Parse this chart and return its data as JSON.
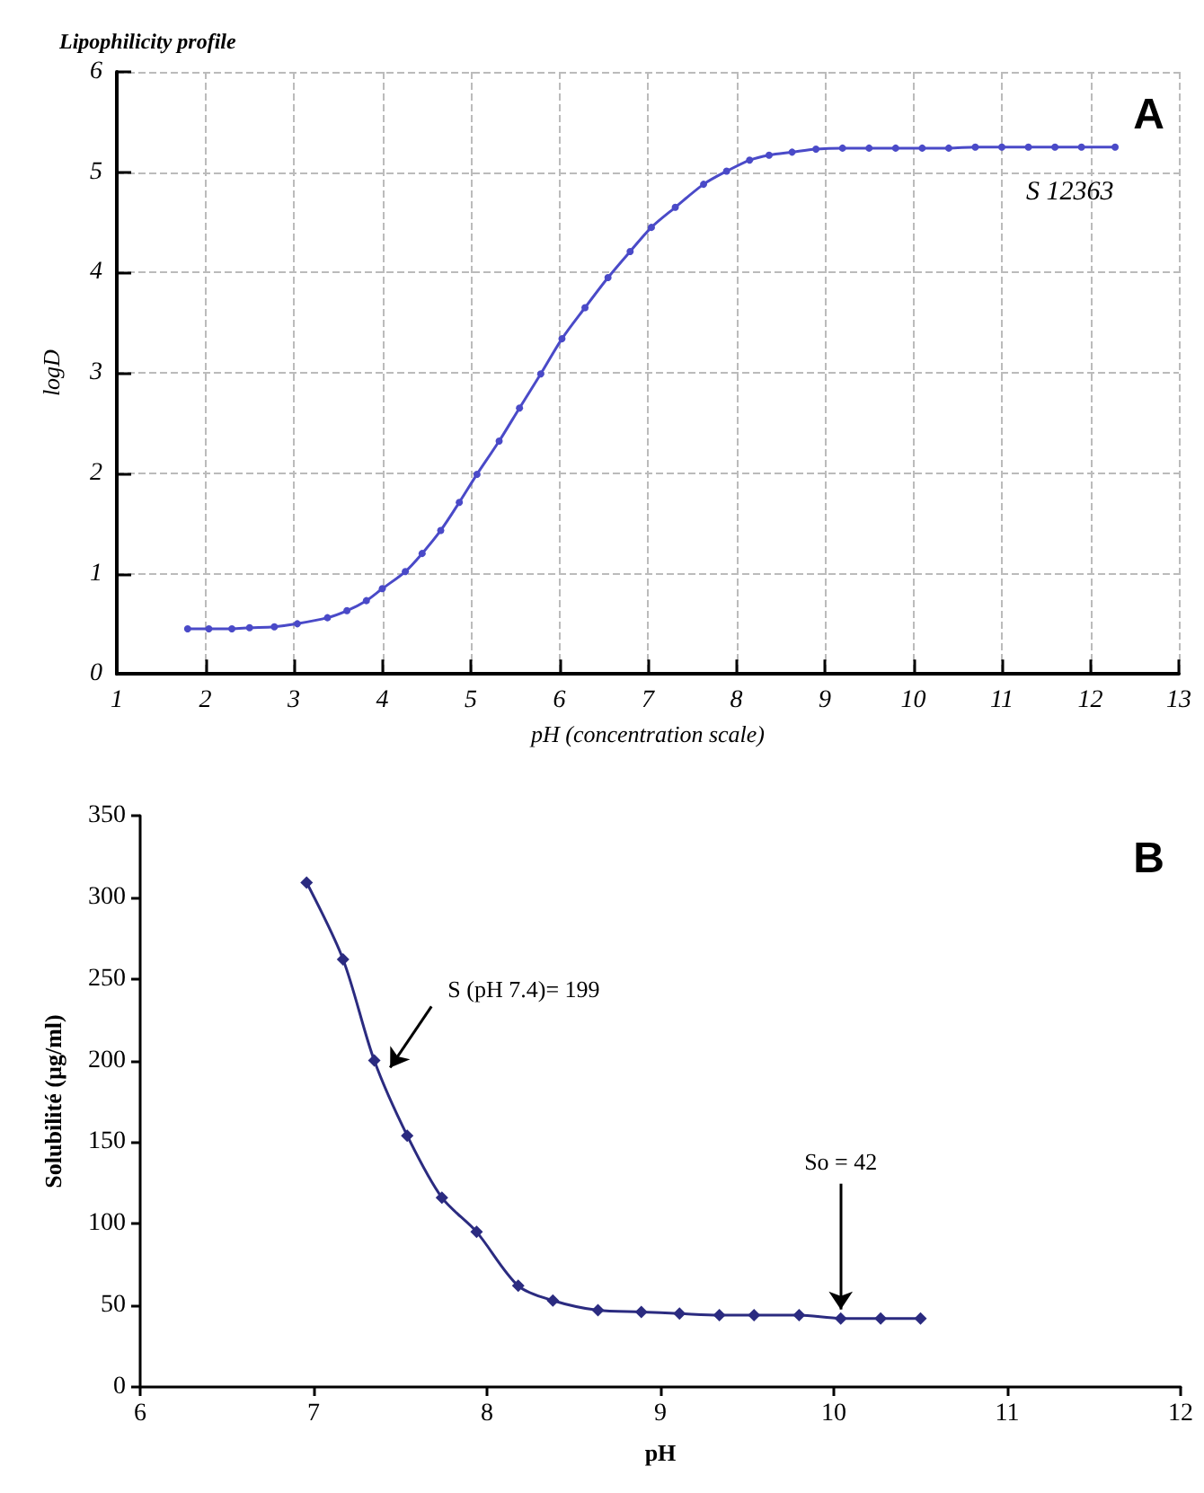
{
  "chart_data": [
    {
      "type": "line",
      "title": "Lipophilicity profile",
      "xlabel": "pH (concentration scale)",
      "ylabel": "logD",
      "x": [
        1.8,
        2.04,
        2.3,
        2.5,
        2.78,
        3.04,
        3.38,
        3.6,
        3.82,
        4.0,
        4.26,
        4.45,
        4.66,
        4.87,
        5.07,
        5.32,
        5.55,
        5.79,
        6.03,
        6.29,
        6.55,
        6.8,
        7.04,
        7.31,
        7.63,
        7.89,
        8.15,
        8.37,
        8.63,
        8.9,
        9.2,
        9.5,
        9.8,
        10.1,
        10.4,
        10.7,
        11.0,
        11.3,
        11.6,
        11.9,
        12.28
      ],
      "series": [
        {
          "name": "S 12363",
          "color": "#4a4ac8",
          "values": [
            0.45,
            0.45,
            0.45,
            0.46,
            0.47,
            0.5,
            0.56,
            0.63,
            0.73,
            0.85,
            1.02,
            1.2,
            1.43,
            1.71,
            1.99,
            2.32,
            2.65,
            2.99,
            3.34,
            3.65,
            3.95,
            4.21,
            4.45,
            4.65,
            4.88,
            5.01,
            5.12,
            5.17,
            5.2,
            5.23,
            5.24,
            5.24,
            5.24,
            5.24,
            5.24,
            5.25,
            5.25,
            5.25,
            5.25,
            5.25,
            5.25
          ]
        }
      ],
      "xlim": [
        1,
        13
      ],
      "xticks": [
        1,
        2,
        3,
        4,
        5,
        6,
        7,
        8,
        9,
        10,
        11,
        12,
        13
      ],
      "ylim": [
        0,
        6
      ],
      "yticks": [
        0,
        1,
        2,
        3,
        4,
        5,
        6
      ],
      "grid": true,
      "marker": "circle",
      "annotations": [
        "A"
      ]
    },
    {
      "type": "line",
      "xlabel": "pH",
      "ylabel": "Solubilité (µg/ml)",
      "x": [
        6.96,
        7.17,
        7.35,
        7.54,
        7.74,
        7.94,
        8.18,
        8.38,
        8.64,
        8.89,
        9.11,
        9.34,
        9.54,
        9.8,
        10.04,
        10.27,
        10.5
      ],
      "series": [
        {
          "color": "#2b2b80",
          "values": [
            309,
            262,
            200,
            154,
            116,
            95,
            62,
            53,
            47,
            46,
            45,
            44,
            44,
            44,
            42,
            42,
            42
          ]
        }
      ],
      "xlim": [
        6,
        12
      ],
      "xticks": [
        6,
        7,
        8,
        9,
        10,
        11,
        12
      ],
      "ylim": [
        0,
        350
      ],
      "yticks": [
        0,
        50,
        100,
        150,
        200,
        250,
        300,
        350
      ],
      "grid": false,
      "marker": "diamond",
      "annotations": [
        "B",
        {
          "text": "S (pH 7.4)= 199",
          "x": 7.4,
          "y": 199
        },
        {
          "text": "So = 42",
          "x": 10.04,
          "y": 42
        }
      ]
    }
  ]
}
